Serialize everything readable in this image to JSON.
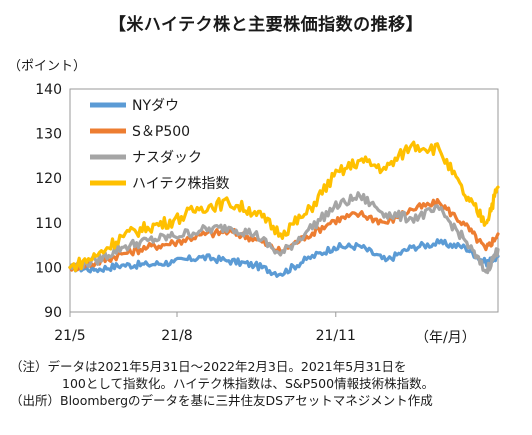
{
  "header": {
    "title": "【米ハイテク株と主要株価指数の推移】",
    "unit_label": "（ポイント）"
  },
  "chart_data": {
    "type": "line",
    "title": "【米ハイテク株と主要株価指数の推移】",
    "ylabel": "（ポイント）",
    "xlabel": "（年/月）",
    "ylim": [
      90,
      140
    ],
    "yticks": [
      90,
      100,
      110,
      120,
      130,
      140
    ],
    "x_ticks": [
      "21/5",
      "21/8",
      "21/11"
    ],
    "x_range": [
      "2021-05-31",
      "2022-02-03"
    ],
    "grid": false,
    "legend_position": "top-left",
    "x": [
      "2021-05-31",
      "2021-06-15",
      "2021-06-30",
      "2021-07-15",
      "2021-07-30",
      "2021-08-15",
      "2021-08-31",
      "2021-09-15",
      "2021-09-30",
      "2021-10-15",
      "2021-10-31",
      "2021-11-15",
      "2021-11-30",
      "2021-12-15",
      "2021-12-31",
      "2022-01-15",
      "2022-01-27",
      "2022-02-03"
    ],
    "series": [
      {
        "name": "NYダウ",
        "color": "#5b9bd5",
        "values": [
          100,
          99.5,
          100.5,
          100.6,
          101.2,
          102.3,
          101.5,
          100.5,
          98.5,
          101.8,
          104.5,
          104.8,
          101.5,
          104.5,
          105.5,
          104.5,
          101.0,
          102.5
        ]
      },
      {
        "name": "S＆P500",
        "color": "#ed7d31",
        "values": [
          100,
          101.0,
          103.0,
          104.5,
          105.5,
          107.3,
          108.0,
          106.5,
          103.5,
          107.0,
          110.5,
          112.0,
          110.0,
          113.0,
          114.5,
          109.5,
          104.0,
          107.5
        ]
      },
      {
        "name": "ナスダック",
        "color": "#a5a5a5",
        "values": [
          100,
          101.5,
          104.5,
          106.0,
          107.0,
          108.3,
          109.0,
          107.5,
          102.8,
          108.0,
          113.5,
          116.0,
          112.0,
          111.0,
          113.0,
          106.0,
          99.0,
          104.0
        ]
      },
      {
        "name": "ハイテク株指数",
        "color": "#ffc000",
        "values": [
          100,
          102.5,
          107.0,
          109.0,
          110.5,
          113.5,
          114.5,
          112.5,
          107.5,
          112.0,
          120.5,
          124.0,
          122.0,
          127.5,
          126.5,
          116.0,
          110.0,
          118.0
        ]
      }
    ]
  },
  "notes": {
    "line1": "（注）データは2021年5月31日～2022年2月3日。2021年5月31日を",
    "line2": "100として指数化。ハイテク株指数は、S&P500情報技術株指数。",
    "line3": "（出所）Bloombergのデータを基に三井住友DSアセットマネジメント作成"
  }
}
